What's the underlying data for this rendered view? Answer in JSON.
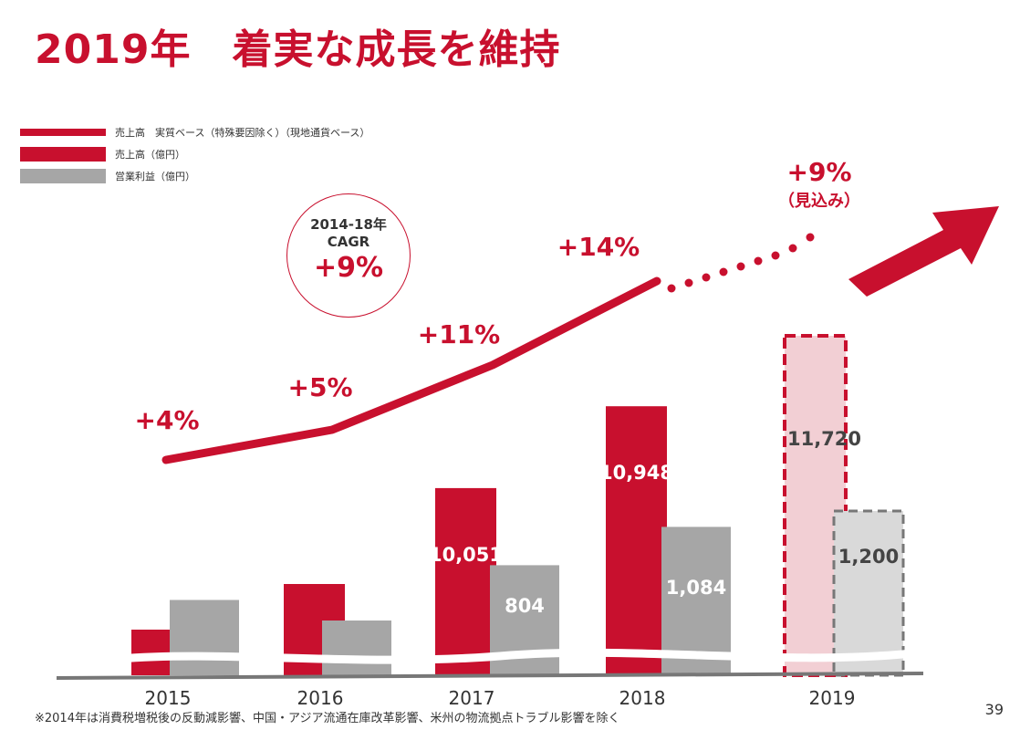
{
  "title": "2019年　着実な成長を維持",
  "legend": [
    {
      "label": "売上高　実質ベース（特殊要因除く）（現地通貨ベース）",
      "type": "line"
    },
    {
      "label": "売上高（億円）",
      "type": "red"
    },
    {
      "label": "営業利益（億円）",
      "type": "gray"
    }
  ],
  "cagr": {
    "line1": "2014-18年",
    "line2": "CAGR",
    "value": "+9%"
  },
  "footnote": "※2014年は消費税増税後の反動減影響、中国・アジア流通在庫改革影響、米州の物流拠点トラブル影響を除く",
  "page_number": "39",
  "colors": {
    "red": "#c8102e",
    "gray": "#a6a6a6",
    "forecast_red": "#f2cfd4",
    "forecast_gray": "#d9d9d9"
  },
  "chart_data": {
    "type": "bar",
    "categories": [
      "2015",
      "2016",
      "2017",
      "2018",
      "2019"
    ],
    "series": [
      {
        "name": "売上高（億円）",
        "values": [
          8500,
          9000,
          10051,
          10948,
          11720
        ],
        "labels": [
          "",
          "",
          "10,051",
          "10,948",
          "11,720"
        ],
        "forecast": [
          false,
          false,
          false,
          false,
          true
        ]
      },
      {
        "name": "営業利益（億円）",
        "values": [
          550,
          400,
          804,
          1084,
          1200
        ],
        "labels": [
          "",
          "",
          "804",
          "1,084",
          "1,200"
        ],
        "forecast": [
          false,
          false,
          false,
          false,
          true
        ]
      }
    ],
    "growth_line": {
      "name": "売上高　実質ベース（特殊要因除く）（現地通貨ベース）",
      "labels": [
        "+4%",
        "+5%",
        "+11%",
        "+14%",
        "+9%"
      ],
      "forecast_note": "（見込み）"
    },
    "axis_break": true
  }
}
